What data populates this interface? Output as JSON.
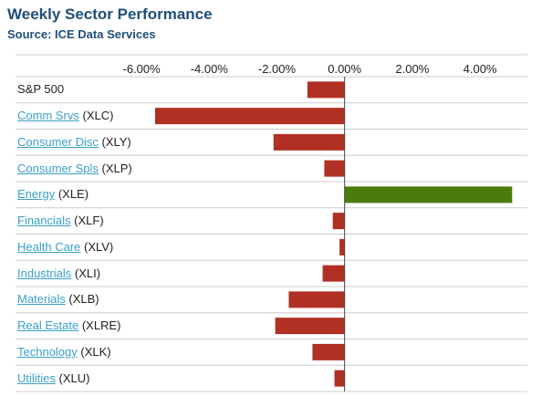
{
  "title": "Weekly Sector Performance",
  "subtitle": "Source: ICE Data Services",
  "colors": {
    "negative": "#b03024",
    "positive": "#4a7c0b",
    "grid": "#cccccc",
    "zero": "#444444",
    "link": "#3aa0c8",
    "title": "#1f4e79"
  },
  "rows": [
    {
      "name": "S&P 500",
      "ticker": "",
      "link": false
    },
    {
      "name": "Comm Srvs",
      "ticker": "(XLC)",
      "link": true
    },
    {
      "name": "Consumer Disc",
      "ticker": "(XLY)",
      "link": true
    },
    {
      "name": "Consumer Spls",
      "ticker": "(XLP)",
      "link": true
    },
    {
      "name": "Energy",
      "ticker": "(XLE)",
      "link": true
    },
    {
      "name": "Financials",
      "ticker": "(XLF)",
      "link": true
    },
    {
      "name": "Health Care",
      "ticker": "(XLV)",
      "link": true
    },
    {
      "name": "Industrials",
      "ticker": "(XLI)",
      "link": true
    },
    {
      "name": "Materials",
      "ticker": "(XLB)",
      "link": true
    },
    {
      "name": "Real Estate",
      "ticker": "(XLRE)",
      "link": true
    },
    {
      "name": "Technology",
      "ticker": "(XLK)",
      "link": true
    },
    {
      "name": "Utilities",
      "ticker": "(XLU)",
      "link": true
    }
  ],
  "chart_data": {
    "type": "bar",
    "orientation": "horizontal",
    "categories": [
      "S&P 500",
      "Comm Srvs (XLC)",
      "Consumer Disc (XLY)",
      "Consumer Spls (XLP)",
      "Energy (XLE)",
      "Financials (XLF)",
      "Health Care (XLV)",
      "Industrials (XLI)",
      "Materials (XLB)",
      "Real Estate (XLRE)",
      "Technology (XLK)",
      "Utilities (XLU)"
    ],
    "values": [
      -1.1,
      -5.6,
      -2.1,
      -0.6,
      4.95,
      -0.35,
      -0.15,
      -0.65,
      -1.65,
      -2.05,
      -0.95,
      -0.3
    ],
    "xlim": [
      -7.0,
      5.4
    ],
    "ticks": [
      -6,
      -4,
      -2,
      0,
      2,
      4
    ],
    "tick_labels": [
      "-6.00%",
      "-4.00%",
      "-2.00%",
      "0.00%",
      "2.00%",
      "4.00%"
    ],
    "title": "Weekly Sector Performance",
    "subtitle": "Source: ICE Data Services",
    "grid": true
  }
}
